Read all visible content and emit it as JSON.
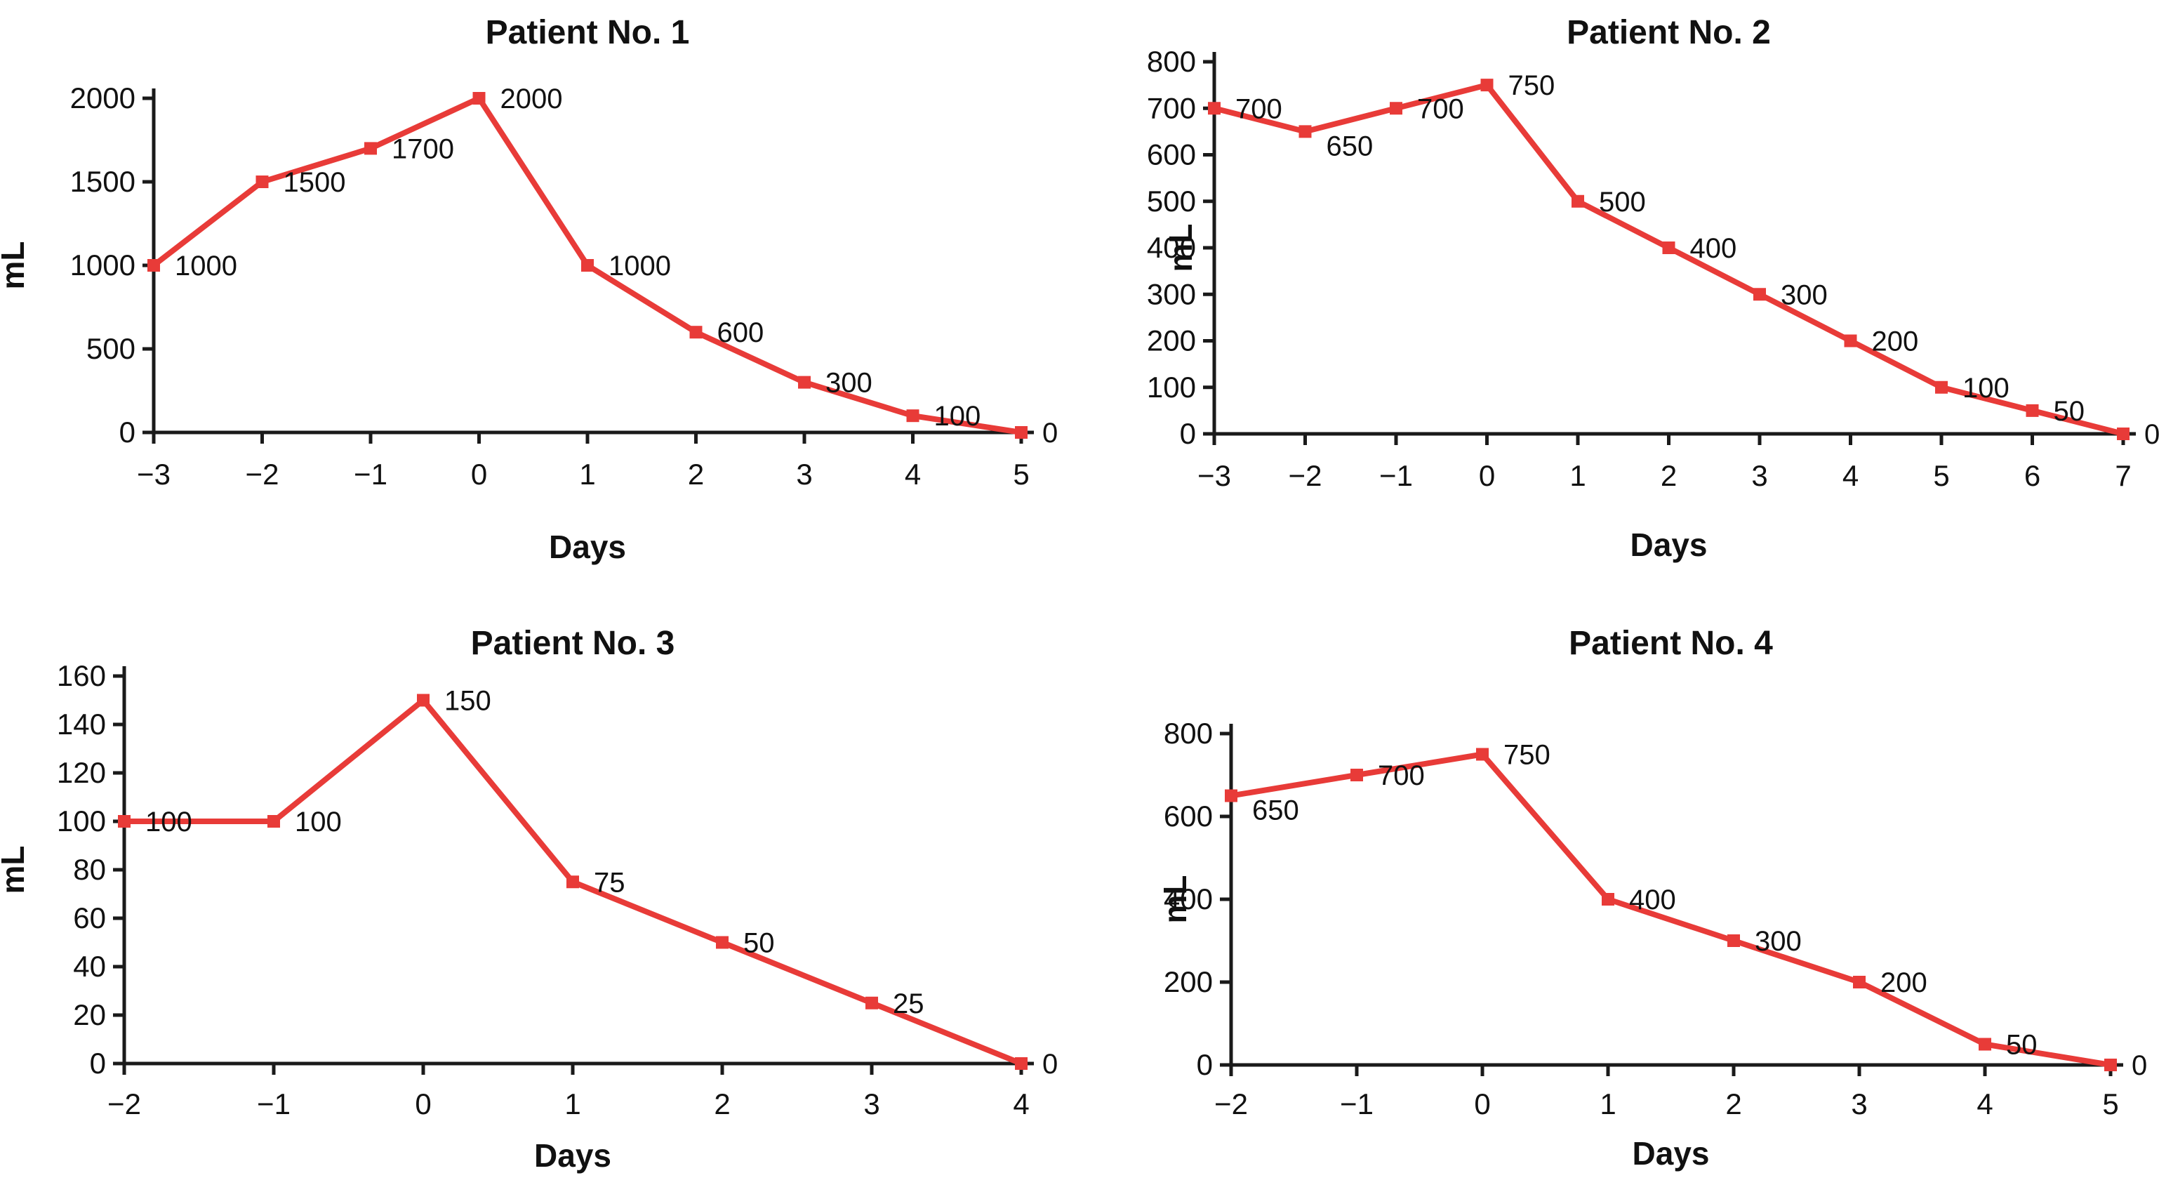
{
  "figure": {
    "background": "#ffffff"
  },
  "colors": {
    "line": "#e83b38",
    "axis": "#1a1a1a",
    "text": "#111111"
  },
  "chart_data": [
    {
      "type": "line",
      "title": "Patient No. 1",
      "xlabel": "Days",
      "ylabel": "mL",
      "x": [
        -3,
        -2,
        -1,
        0,
        1,
        2,
        3,
        4,
        5
      ],
      "values": [
        1000,
        1500,
        1700,
        2000,
        1000,
        600,
        300,
        100,
        0
      ],
      "point_labels": [
        "1000",
        "1500",
        "1700",
        "2000",
        "1000",
        "600",
        "300",
        "100",
        "0"
      ],
      "xticks": [
        -3,
        -2,
        -1,
        0,
        1,
        2,
        3,
        4,
        5
      ],
      "yticks": [
        0,
        500,
        1000,
        1500,
        2000
      ],
      "xlim": [
        -3,
        5
      ],
      "ylim": [
        0,
        2000
      ],
      "grid": false,
      "legend": null,
      "marker": "square"
    },
    {
      "type": "line",
      "title": "Patient No. 2",
      "xlabel": "Days",
      "ylabel": "mL",
      "x": [
        -3,
        -2,
        -1,
        0,
        1,
        2,
        3,
        4,
        5,
        6,
        7
      ],
      "values": [
        700,
        650,
        700,
        750,
        500,
        400,
        300,
        200,
        100,
        50,
        0
      ],
      "point_labels": [
        "700",
        "650",
        "700",
        "750",
        "500",
        "400",
        "300",
        "200",
        "100",
        "50",
        "0"
      ],
      "xticks": [
        -3,
        -2,
        -1,
        0,
        1,
        2,
        3,
        4,
        5,
        6,
        7
      ],
      "yticks": [
        0,
        100,
        200,
        300,
        400,
        500,
        600,
        700,
        800
      ],
      "xlim": [
        -3,
        7
      ],
      "ylim": [
        0,
        800
      ],
      "grid": false,
      "legend": null,
      "marker": "square"
    },
    {
      "type": "line",
      "title": "Patient No. 3",
      "xlabel": "Days",
      "ylabel": "mL",
      "x": [
        -2,
        -1,
        0,
        1,
        2,
        3,
        4
      ],
      "values": [
        100,
        100,
        150,
        75,
        50,
        25,
        0
      ],
      "point_labels": [
        "100",
        "100",
        "150",
        "75",
        "50",
        "25",
        "0"
      ],
      "xticks": [
        -2,
        -1,
        0,
        1,
        2,
        3,
        4
      ],
      "yticks": [
        0,
        20,
        40,
        60,
        80,
        100,
        120,
        140,
        160
      ],
      "xlim": [
        -2,
        4
      ],
      "ylim": [
        0,
        160
      ],
      "grid": false,
      "legend": null,
      "marker": "square"
    },
    {
      "type": "line",
      "title": "Patient No. 4",
      "xlabel": "Days",
      "ylabel": "mL",
      "x": [
        -2,
        -1,
        0,
        1,
        2,
        3,
        4,
        5
      ],
      "values": [
        650,
        700,
        750,
        400,
        300,
        200,
        50,
        0
      ],
      "point_labels": [
        "650",
        "700",
        "750",
        "400",
        "300",
        "200",
        "50",
        "0"
      ],
      "xticks": [
        -2,
        -1,
        0,
        1,
        2,
        3,
        4,
        5
      ],
      "yticks": [
        0,
        200,
        400,
        600,
        800
      ],
      "xlim": [
        -2,
        5
      ],
      "ylim": [
        0,
        800
      ],
      "grid": false,
      "legend": null,
      "marker": "square"
    }
  ]
}
